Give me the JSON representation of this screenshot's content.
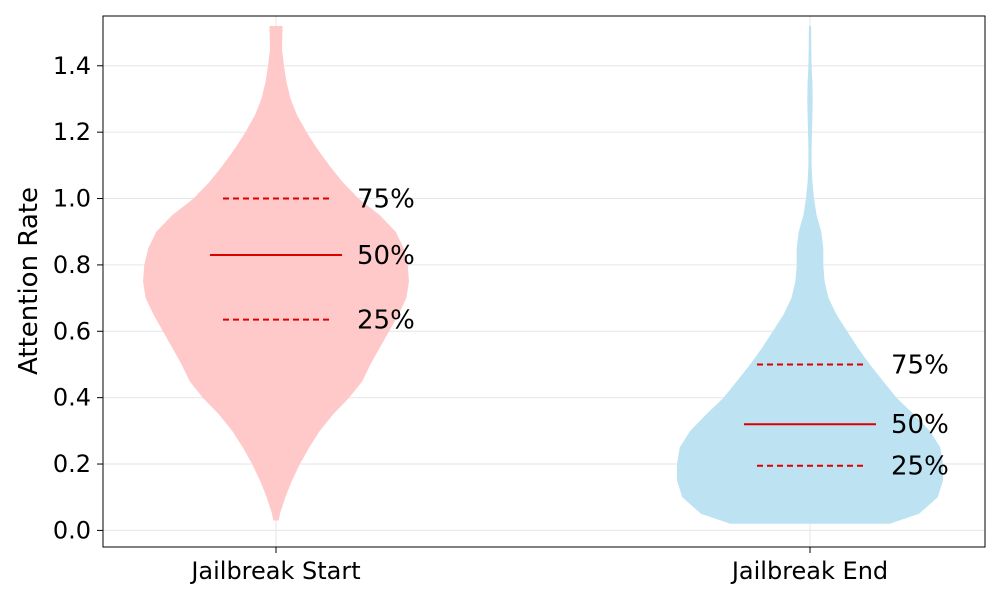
{
  "chart_data": {
    "type": "violin",
    "title": "",
    "xlabel": "",
    "ylabel": "Attention Rate",
    "ylim": [
      -0.05,
      1.55
    ],
    "yticks": [
      0.0,
      0.2,
      0.4,
      0.6,
      0.8,
      1.0,
      1.2,
      1.4
    ],
    "ytick_labels": [
      "0.0",
      "0.2",
      "0.4",
      "0.6",
      "0.8",
      "1.0",
      "1.2",
      "1.4"
    ],
    "grid": true,
    "categories": [
      "Jailbreak Start",
      "Jailbreak End"
    ],
    "series": [
      {
        "category": "Jailbreak Start",
        "color": "#ffc9c9",
        "min": 0.03,
        "max": 1.52,
        "quartiles": {
          "q25": 0.635,
          "q50": 0.83,
          "q75": 1.0
        },
        "density_profile": [
          [
            0.03,
            0.02
          ],
          [
            0.05,
            0.03
          ],
          [
            0.1,
            0.07
          ],
          [
            0.15,
            0.12
          ],
          [
            0.2,
            0.18
          ],
          [
            0.25,
            0.25
          ],
          [
            0.3,
            0.33
          ],
          [
            0.35,
            0.43
          ],
          [
            0.4,
            0.55
          ],
          [
            0.45,
            0.65
          ],
          [
            0.5,
            0.71
          ],
          [
            0.55,
            0.78
          ],
          [
            0.6,
            0.85
          ],
          [
            0.65,
            0.92
          ],
          [
            0.7,
            0.98
          ],
          [
            0.75,
            1.0
          ],
          [
            0.8,
            0.99
          ],
          [
            0.85,
            0.96
          ],
          [
            0.9,
            0.9
          ],
          [
            0.95,
            0.78
          ],
          [
            1.0,
            0.62
          ],
          [
            1.05,
            0.5
          ],
          [
            1.1,
            0.4
          ],
          [
            1.15,
            0.31
          ],
          [
            1.2,
            0.23
          ],
          [
            1.25,
            0.16
          ],
          [
            1.3,
            0.11
          ],
          [
            1.35,
            0.08
          ],
          [
            1.4,
            0.06
          ],
          [
            1.45,
            0.045
          ],
          [
            1.52,
            0.05
          ]
        ]
      },
      {
        "category": "Jailbreak End",
        "color": "#bde3f3",
        "min": 0.02,
        "max": 1.52,
        "quartiles": {
          "q25": 0.195,
          "q50": 0.32,
          "q75": 0.5
        },
        "density_profile": [
          [
            0.02,
            0.6
          ],
          [
            0.05,
            0.82
          ],
          [
            0.1,
            0.96
          ],
          [
            0.15,
            1.0
          ],
          [
            0.2,
            1.0
          ],
          [
            0.25,
            0.98
          ],
          [
            0.3,
            0.9
          ],
          [
            0.35,
            0.78
          ],
          [
            0.4,
            0.65
          ],
          [
            0.45,
            0.55
          ],
          [
            0.5,
            0.45
          ],
          [
            0.55,
            0.36
          ],
          [
            0.6,
            0.28
          ],
          [
            0.65,
            0.2
          ],
          [
            0.7,
            0.14
          ],
          [
            0.75,
            0.11
          ],
          [
            0.8,
            0.1
          ],
          [
            0.85,
            0.1
          ],
          [
            0.9,
            0.085
          ],
          [
            0.95,
            0.05
          ],
          [
            1.0,
            0.03
          ],
          [
            1.05,
            0.018
          ],
          [
            1.1,
            0.012
          ],
          [
            1.15,
            0.012
          ],
          [
            1.2,
            0.015
          ],
          [
            1.25,
            0.018
          ],
          [
            1.3,
            0.02
          ],
          [
            1.35,
            0.018
          ],
          [
            1.4,
            0.012
          ],
          [
            1.45,
            0.01
          ],
          [
            1.52,
            0.008
          ]
        ]
      }
    ],
    "quartile_labels": {
      "q25": "25%",
      "q50": "50%",
      "q75": "75%"
    },
    "quartile_line_color": "#dd0000"
  }
}
